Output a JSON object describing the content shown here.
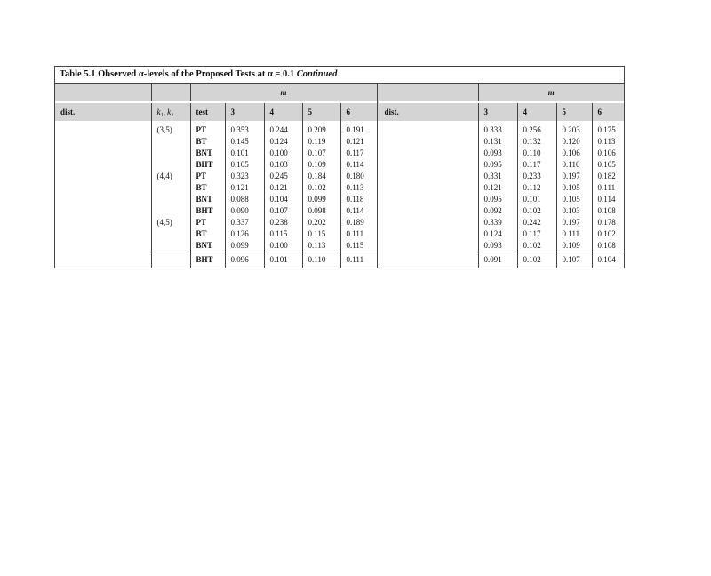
{
  "title": {
    "prefix": "Table 5.1  Observed α-levels of the Proposed Tests at α = 0.1",
    "suffix": "Continued"
  },
  "header": {
    "m": "m",
    "dist": "dist.",
    "k": "k₁, k₂",
    "test": "test",
    "m_values": [
      "3",
      "4",
      "5",
      "6"
    ]
  },
  "rows": [
    {
      "k": "(3,5)",
      "test": "PT",
      "left": [
        "0.353",
        "0.244",
        "0.209",
        "0.191"
      ],
      "right": [
        "0.333",
        "0.256",
        "0.203",
        "0.175"
      ]
    },
    {
      "k": "",
      "test": "BT",
      "left": [
        "0.145",
        "0.124",
        "0.119",
        "0.121"
      ],
      "right": [
        "0.131",
        "0.132",
        "0.120",
        "0.113"
      ]
    },
    {
      "k": "",
      "test": "BNT",
      "left": [
        "0.101",
        "0.100",
        "0.107",
        "0.117"
      ],
      "right": [
        "0.093",
        "0.110",
        "0.106",
        "0.106"
      ]
    },
    {
      "k": "",
      "test": "BHT",
      "left": [
        "0.105",
        "0.103",
        "0.109",
        "0.114"
      ],
      "right": [
        "0.095",
        "0.117",
        "0.110",
        "0.105"
      ]
    },
    {
      "k": "(4,4)",
      "test": "PT",
      "left": [
        "0.323",
        "0.245",
        "0.184",
        "0.180"
      ],
      "right": [
        "0.331",
        "0.233",
        "0.197",
        "0.182"
      ]
    },
    {
      "k": "",
      "test": "BT",
      "left": [
        "0.121",
        "0.121",
        "0.102",
        "0.113"
      ],
      "right": [
        "0.121",
        "0.112",
        "0.105",
        "0.111"
      ]
    },
    {
      "k": "",
      "test": "BNT",
      "left": [
        "0.088",
        "0.104",
        "0.099",
        "0.118"
      ],
      "right": [
        "0.095",
        "0.101",
        "0.105",
        "0.114"
      ]
    },
    {
      "k": "",
      "test": "BHT",
      "left": [
        "0.090",
        "0.107",
        "0.098",
        "0.114"
      ],
      "right": [
        "0.092",
        "0.102",
        "0.103",
        "0.108"
      ]
    },
    {
      "k": "(4,5)",
      "test": "PT",
      "left": [
        "0.337",
        "0.238",
        "0.202",
        "0.189"
      ],
      "right": [
        "0.339",
        "0.242",
        "0.197",
        "0.178"
      ]
    },
    {
      "k": "",
      "test": "BT",
      "left": [
        "0.126",
        "0.115",
        "0.115",
        "0.111"
      ],
      "right": [
        "0.124",
        "0.117",
        "0.111",
        "0.102"
      ]
    },
    {
      "k": "",
      "test": "BNT",
      "left": [
        "0.099",
        "0.100",
        "0.113",
        "0.115"
      ],
      "right": [
        "0.093",
        "0.102",
        "0.109",
        "0.108"
      ]
    },
    {
      "k": "",
      "test": "BHT",
      "left": [
        "0.096",
        "0.101",
        "0.110",
        "0.111"
      ],
      "right": [
        "0.091",
        "0.102",
        "0.107",
        "0.104"
      ]
    }
  ]
}
